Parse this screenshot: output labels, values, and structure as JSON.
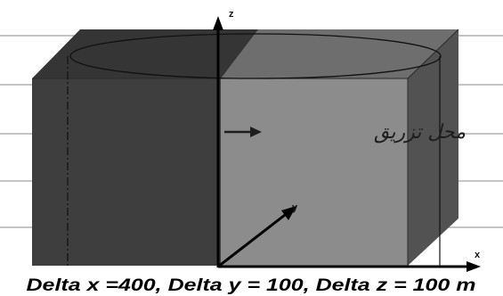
{
  "diagram": {
    "axes": {
      "x_label": "x",
      "y_label": "y",
      "z_label": "z"
    },
    "injection_label": "محل تزریق",
    "caption": "Delta x =400,  Delta y = 100, Delta z = 100 m",
    "colors": {
      "front_left_face": "#3d3d3d",
      "front_right_face": "#8a8a8a",
      "top_left_face": "#333333",
      "top_right_face": "#707070",
      "side_face": "#555555",
      "background_lines": "#9a9a9a",
      "axes": "#000000"
    }
  }
}
